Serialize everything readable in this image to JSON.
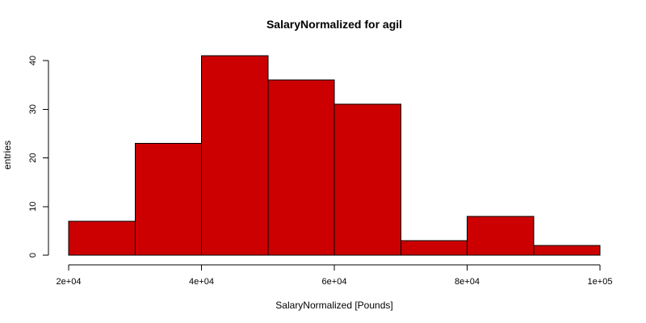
{
  "chart_data": {
    "type": "bar",
    "title": "SalaryNormalized for agil",
    "xlabel": "SalaryNormalized [Pounds]",
    "ylabel": "entries",
    "bin_edges": [
      20000,
      30000,
      40000,
      50000,
      60000,
      70000,
      80000,
      90000,
      100000
    ],
    "values": [
      7,
      23,
      41,
      36,
      31,
      3,
      8,
      2
    ],
    "xlim": [
      20000,
      100000
    ],
    "ylim": [
      0,
      41
    ],
    "xticks": [
      20000,
      40000,
      60000,
      80000,
      100000
    ],
    "xtick_labels": [
      "2e+04",
      "4e+04",
      "6e+04",
      "8e+04",
      "1e+05"
    ],
    "yticks": [
      0,
      10,
      20,
      30,
      40
    ],
    "ytick_labels": [
      "0",
      "10",
      "20",
      "30",
      "40"
    ],
    "grid": false,
    "legend": "none",
    "bar_color": "#CC0000",
    "edge_color": "#000000"
  }
}
